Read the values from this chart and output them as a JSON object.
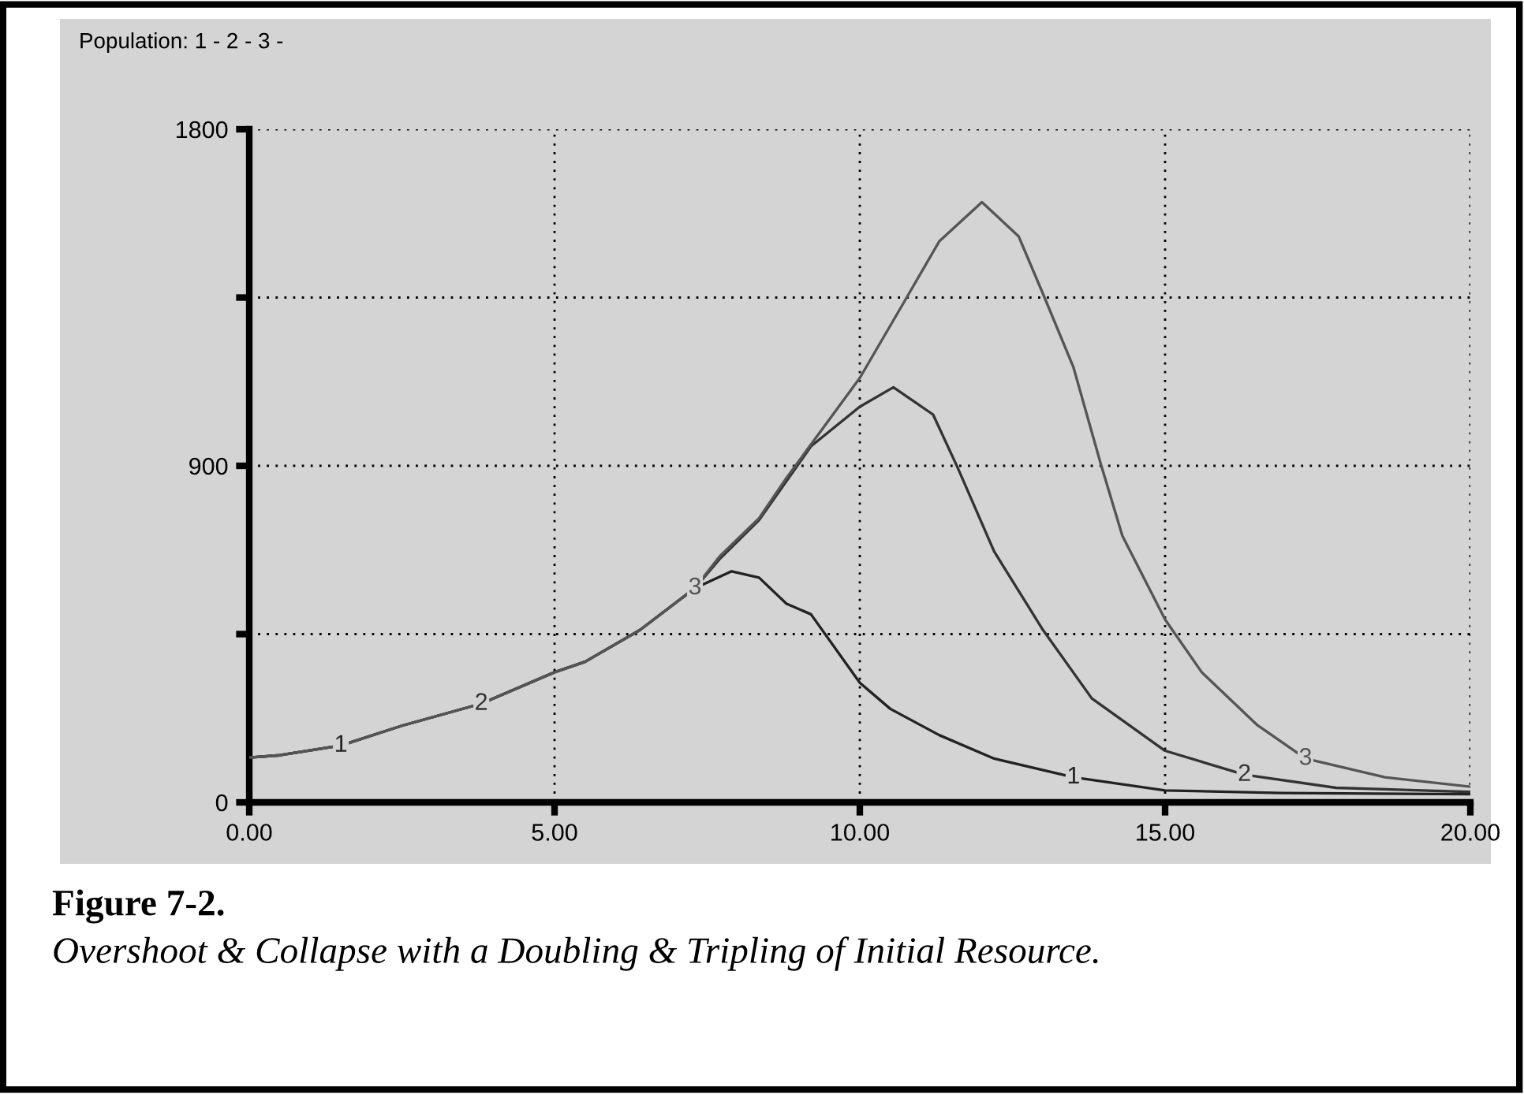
{
  "chart_data": {
    "type": "line",
    "title": "Population: 1 - 2 - 3 -",
    "xlim": [
      0,
      20
    ],
    "ylim": [
      0,
      1800
    ],
    "xticks": [
      {
        "value": 0,
        "label": "0.00"
      },
      {
        "value": 5,
        "label": "5.00"
      },
      {
        "value": 10,
        "label": "10.00"
      },
      {
        "value": 15,
        "label": "15.00"
      },
      {
        "value": 20,
        "label": "20.00"
      }
    ],
    "yticks": [
      0,
      {
        "value": 450,
        "label": null
      },
      900,
      {
        "value": 1350,
        "label": null
      },
      1800
    ],
    "grid": true,
    "line_style": "solid",
    "marker": "none",
    "series": [
      {
        "name": "1",
        "color": "#222222",
        "x": [
          0,
          0.5,
          1.5,
          2.5,
          3.8,
          5,
          5.5,
          6.4,
          7.3,
          7.9,
          8.35,
          8.8,
          9.2,
          10,
          10.5,
          11.3,
          12.2,
          13.5,
          15,
          16.9,
          20
        ],
        "values": [
          120,
          126,
          152,
          205,
          264,
          348,
          376,
          461,
          573,
          618,
          601,
          531,
          503,
          320,
          250,
          180,
          117,
          67,
          32,
          25,
          22
        ]
      },
      {
        "name": "2",
        "color": "#333333",
        "x": [
          0,
          0.5,
          1.5,
          2.5,
          3.8,
          5,
          5.5,
          6.4,
          7.3,
          7.7,
          8.35,
          9.2,
          10,
          10.55,
          11.2,
          11.6,
          12.2,
          13,
          13.8,
          15,
          16.3,
          17.8,
          20
        ],
        "values": [
          120,
          126,
          152,
          205,
          264,
          348,
          376,
          461,
          573,
          650,
          755,
          952,
          1058,
          1110,
          1037,
          896,
          671,
          461,
          278,
          138,
          74,
          39,
          28
        ]
      },
      {
        "name": "3",
        "color": "#555555",
        "x": [
          0,
          0.5,
          1.5,
          2.5,
          3.8,
          5,
          5.5,
          6.4,
          7.3,
          7.7,
          8.35,
          8.8,
          10,
          10.7,
          11.3,
          12,
          12.6,
          13,
          13.5,
          13.95,
          14.3,
          15,
          15.6,
          16.5,
          17.3,
          18.6,
          20
        ],
        "values": [
          120,
          126,
          152,
          205,
          264,
          348,
          376,
          461,
          573,
          657,
          760,
          868,
          1135,
          1331,
          1500,
          1605,
          1514,
          1360,
          1163,
          903,
          713,
          489,
          348,
          208,
          117,
          67,
          42
        ]
      }
    ],
    "annotations": [
      "Figure 7-2.",
      "Overshoot & Collapse with a Doubling & Tripling of Initial Resource."
    ]
  }
}
